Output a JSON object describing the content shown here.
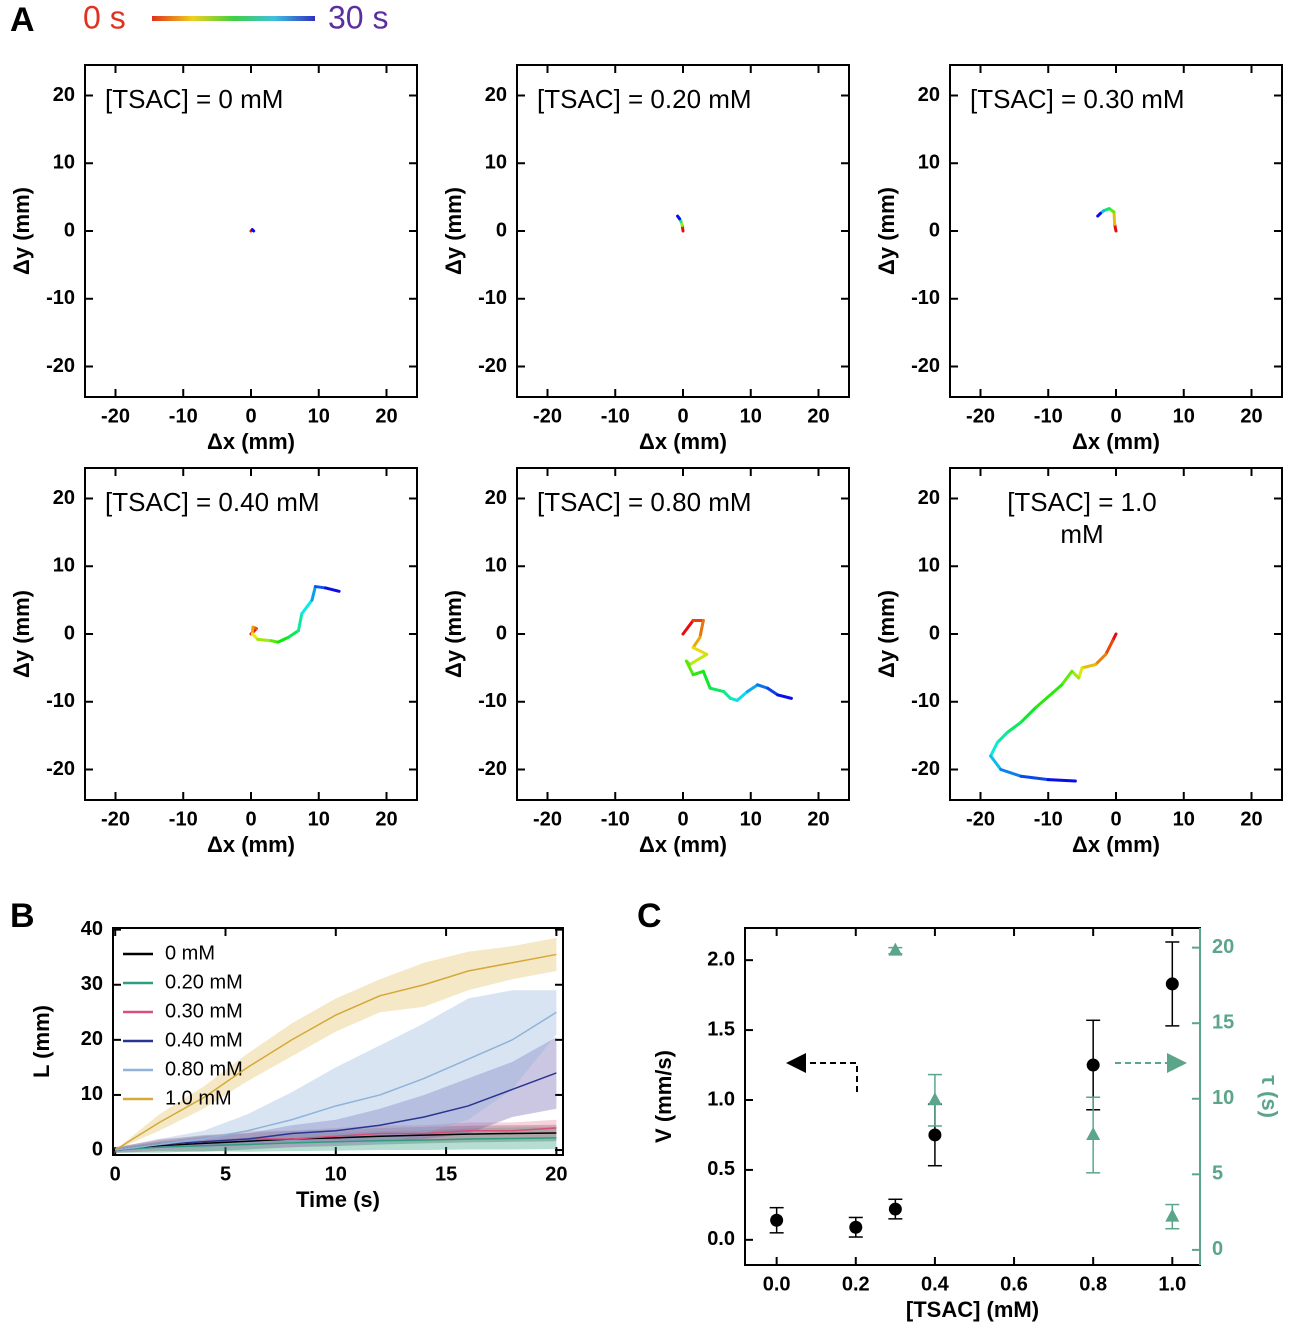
{
  "panel_labels": [
    "A",
    "B",
    "C"
  ],
  "colorbar": {
    "start_label": "0 s",
    "end_label": "30 s"
  },
  "chart_data": [
    {
      "type": "trajectory",
      "annotation": "[TSAC] = 0 mM",
      "xlabel": "Δx (mm)",
      "ylabel": "Δy (mm)",
      "x": [
        0,
        0.2,
        0.4
      ],
      "values": [
        0,
        0.2,
        0
      ],
      "xlim": [
        -24.5,
        24.5
      ],
      "ylim": [
        -24.5,
        24.5
      ],
      "xticks": [
        -20,
        -10,
        0,
        10,
        20
      ],
      "yticks": [
        -20,
        -10,
        0,
        10,
        20
      ]
    },
    {
      "type": "trajectory",
      "annotation": "[TSAC] = 0.20 mM",
      "xlabel": "Δx (mm)",
      "ylabel": "Δy (mm)",
      "x": [
        0,
        -0.1,
        -0.3,
        -0.5,
        -0.8
      ],
      "values": [
        0,
        0.8,
        1.4,
        1.8,
        2.2
      ],
      "xlim": [
        -24.5,
        24.5
      ],
      "ylim": [
        -24.5,
        24.5
      ],
      "xticks": [
        -20,
        -10,
        0,
        10,
        20
      ],
      "yticks": [
        -20,
        -10,
        0,
        10,
        20
      ]
    },
    {
      "type": "trajectory",
      "annotation": "[TSAC] = 0.30 mM",
      "xlabel": "Δx (mm)",
      "ylabel": "Δy (mm)",
      "x": [
        0,
        -0.2,
        -0.3,
        -1,
        -1.8,
        -2.3,
        -2.7
      ],
      "values": [
        0,
        1,
        2.8,
        3.3,
        3.0,
        2.6,
        2.2
      ],
      "xlim": [
        -24.5,
        24.5
      ],
      "ylim": [
        -24.5,
        24.5
      ],
      "xticks": [
        -20,
        -10,
        0,
        10,
        20
      ],
      "yticks": [
        -20,
        -10,
        0,
        10,
        20
      ]
    },
    {
      "type": "trajectory",
      "annotation": "[TSAC] = 0.40 mM",
      "xlabel": "Δx (mm)",
      "ylabel": "Δy (mm)",
      "x": [
        0,
        0.8,
        0.3,
        0.2,
        1,
        3,
        4,
        5.5,
        7,
        7.5,
        9,
        9.5,
        11,
        13
      ],
      "values": [
        0,
        0.8,
        1,
        0,
        -0.8,
        -1,
        -1.2,
        -0.5,
        0.5,
        3,
        5,
        7,
        6.8,
        6.3
      ],
      "xlim": [
        -24.5,
        24.5
      ],
      "ylim": [
        -24.5,
        24.5
      ],
      "xticks": [
        -20,
        -10,
        0,
        10,
        20
      ],
      "yticks": [
        -20,
        -10,
        0,
        10,
        20
      ]
    },
    {
      "type": "trajectory",
      "annotation": "[TSAC] = 0.80 mM",
      "xlabel": "Δx (mm)",
      "ylabel": "Δy (mm)",
      "x": [
        0,
        1.5,
        3,
        2.5,
        1.5,
        3.5,
        1,
        0.5,
        1.5,
        3,
        4,
        6,
        7,
        8,
        9.5,
        11,
        12.5,
        14,
        16
      ],
      "values": [
        0,
        2,
        2,
        -0.5,
        -2,
        -3,
        -4.5,
        -4,
        -6,
        -5.5,
        -8,
        -8.5,
        -9.5,
        -9.8,
        -8.5,
        -7.5,
        -8,
        -9,
        -9.5
      ],
      "xlim": [
        -24.5,
        24.5
      ],
      "ylim": [
        -24.5,
        24.5
      ],
      "xticks": [
        -20,
        -10,
        0,
        10,
        20
      ],
      "yticks": [
        -20,
        -10,
        0,
        10,
        20
      ]
    },
    {
      "type": "trajectory",
      "annotation": "[TSAC] = 1.0 mM",
      "xlabel": "Δx (mm)",
      "ylabel": "Δy (mm)",
      "x": [
        0,
        -0.5,
        -1.5,
        -3,
        -5,
        -5.5,
        -6.5,
        -8,
        -12,
        -14,
        -16,
        -17.5,
        -18.5,
        -17,
        -14,
        -10,
        -6
      ],
      "values": [
        0,
        -1,
        -3,
        -4.5,
        -5,
        -6.5,
        -5.5,
        -7.5,
        -11,
        -13,
        -14.5,
        -16,
        -18,
        -20,
        -21,
        -21.5,
        -21.7
      ],
      "xlim": [
        -24.5,
        24.5
      ],
      "ylim": [
        -24.5,
        24.5
      ],
      "xticks": [
        -20,
        -10,
        0,
        10,
        20
      ],
      "yticks": [
        -20,
        -10,
        0,
        10,
        20
      ]
    },
    {
      "type": "band-line",
      "xlabel": "Time (s)",
      "ylabel": "L (mm)",
      "legend": "upper left",
      "x": [
        0,
        2,
        4,
        6,
        8,
        10,
        12,
        14,
        16,
        18,
        20
      ],
      "series": [
        {
          "name": "0 mM",
          "color": "#000000",
          "band_color": "#555555",
          "values": [
            0,
            0.8,
            1.2,
            1.6,
            2,
            2.2,
            2.5,
            2.7,
            2.9,
            3,
            3.1
          ],
          "error": [
            0.5,
            1,
            1.5,
            1.5,
            1.5,
            1.5,
            1.5,
            1.5,
            1.5,
            1.5,
            1.5
          ]
        },
        {
          "name": "0.20 mM",
          "color": "#2f9e7e",
          "band_color": "#2f9e7e",
          "values": [
            0,
            0.5,
            0.8,
            1,
            1.3,
            1.5,
            1.7,
            1.8,
            2,
            2.1,
            2.2
          ],
          "error": [
            0.5,
            1,
            1,
            1.3,
            1.5,
            1.6,
            1.7,
            1.8,
            1.9,
            2,
            2
          ]
        },
        {
          "name": "0.30 mM",
          "color": "#d94f7a",
          "band_color": "#e8819f",
          "values": [
            0,
            1,
            1.5,
            2,
            2,
            2.5,
            3,
            3,
            3.5,
            3.5,
            4
          ],
          "error": [
            0.5,
            1,
            1,
            1.5,
            1.5,
            1.5,
            1.5,
            1.5,
            1.5,
            1.5,
            1.5
          ]
        },
        {
          "name": "0.40 mM",
          "color": "#2a3590",
          "band_color": "#6a5fb0",
          "values": [
            0,
            1,
            1.5,
            2,
            3,
            3.5,
            4.5,
            6,
            8,
            11,
            14
          ],
          "error": [
            0.3,
            0.5,
            1,
            1,
            1.5,
            2,
            3,
            4,
            5,
            5,
            6.5
          ]
        },
        {
          "name": "0.80 mM",
          "color": "#8fb3d9",
          "band_color": "#8fb3d9",
          "values": [
            0,
            1,
            2,
            3.5,
            5.5,
            8,
            10,
            13,
            16.5,
            20,
            25
          ],
          "error": [
            0.3,
            1,
            1.5,
            3,
            5,
            7,
            9,
            10,
            11,
            9,
            4
          ]
        },
        {
          "name": "1.0 mM",
          "color": "#d4a93a",
          "band_color": "#e3be5c",
          "values": [
            0,
            5,
            9.5,
            15,
            20,
            24.5,
            28,
            30,
            32.5,
            34,
            35.5
          ],
          "error": [
            0,
            1.5,
            2,
            2.5,
            3,
            3,
            3,
            4,
            3.5,
            3,
            3
          ]
        }
      ],
      "xlim": [
        -0.1,
        20.3
      ],
      "ylim": [
        -0.9,
        40.3
      ],
      "xticks": [
        0,
        5,
        10,
        15,
        20
      ],
      "yticks": [
        0,
        10,
        20,
        30,
        40
      ]
    },
    {
      "type": "errorbar-scatter",
      "xlabel": "[TSAC] (mM)",
      "ylabel": "V (mm/s)",
      "y2label": "τ (s)",
      "y2color": "#5ba58a",
      "series": [
        {
          "name": "V",
          "color": "#000000",
          "marker": "circle",
          "x": [
            0,
            0.2,
            0.3,
            0.4,
            0.8,
            1.0
          ],
          "values": [
            0.14,
            0.09,
            0.22,
            0.75,
            1.25,
            1.83
          ],
          "error": [
            0.09,
            0.07,
            0.07,
            0.22,
            0.32,
            0.3
          ]
        },
        {
          "name": "τ",
          "axis": "y2",
          "color": "#5ba58a",
          "marker": "triangle",
          "x": [
            0.3,
            0.4,
            0.8,
            1.0
          ],
          "values": [
            19.8,
            9.9,
            7.6,
            2.2
          ],
          "error": [
            0.2,
            1.7,
            2.5,
            0.8
          ]
        }
      ],
      "xlim": [
        -0.08,
        1.07
      ],
      "ylim": [
        -0.18,
        2.23
      ],
      "y2lim": [
        -1,
        21.3
      ],
      "xticks": [
        {
          "value": 0,
          "label": "0.0"
        },
        {
          "value": 0.2,
          "label": "0.2"
        },
        {
          "value": 0.4,
          "label": "0.4"
        },
        {
          "value": 0.6,
          "label": "0.6"
        },
        {
          "value": 0.8,
          "label": "0.8"
        },
        {
          "value": 1,
          "label": "1.0"
        }
      ],
      "yticks": [
        {
          "value": 0,
          "label": "0.0"
        },
        {
          "value": 0.5,
          "label": "0.5"
        },
        {
          "value": 1,
          "label": "1.0"
        },
        {
          "value": 1.5,
          "label": "1.5"
        },
        {
          "value": 2,
          "label": "2.0"
        }
      ],
      "y2ticks": [
        0,
        5,
        10,
        15,
        20
      ]
    }
  ]
}
